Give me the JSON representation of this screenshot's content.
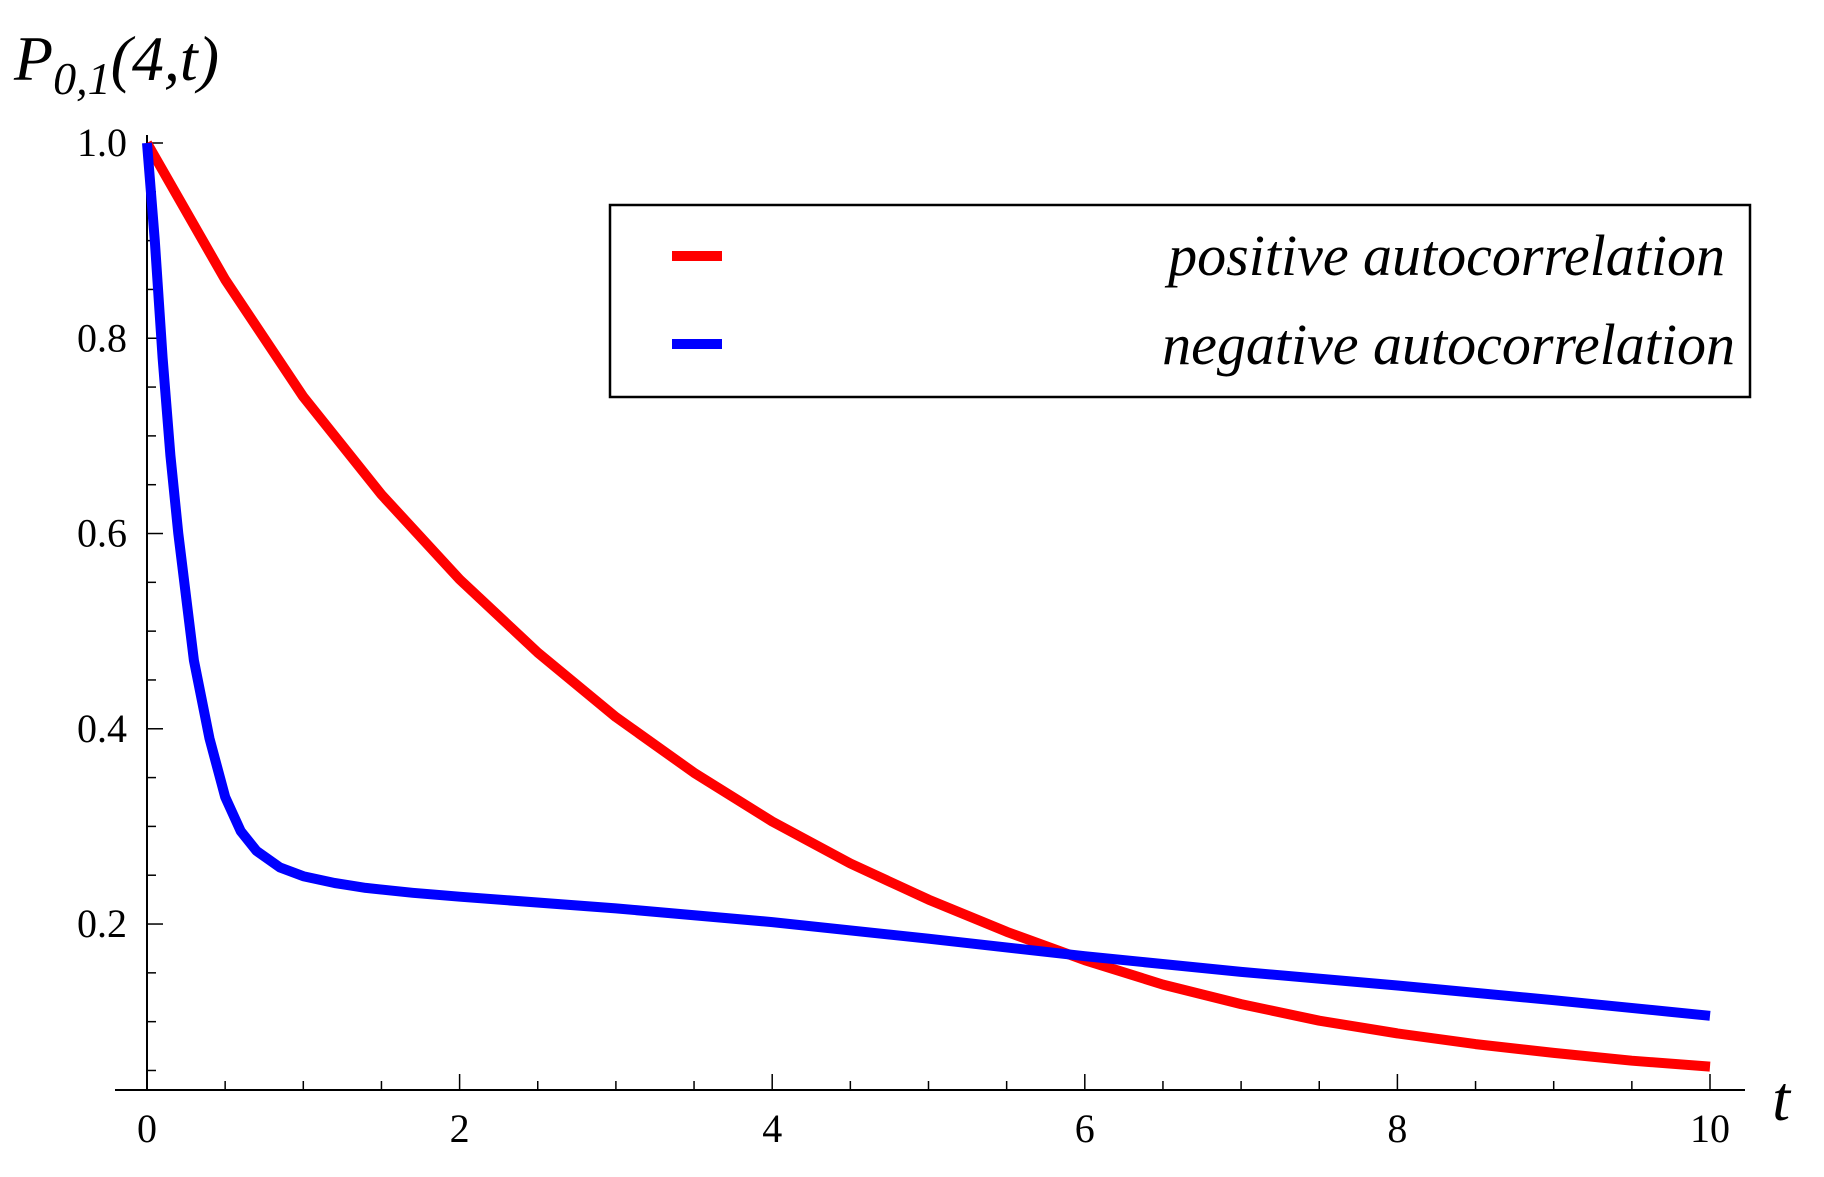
{
  "chart_data": {
    "type": "line",
    "title": "",
    "ylabel": {
      "base": "P",
      "subscript": "0,1",
      "args": "(4,t)"
    },
    "xlabel": "t",
    "xlim": [
      0,
      10
    ],
    "ylim": [
      0.03,
      1.0
    ],
    "x_ticks": [
      {
        "value": 0,
        "label": "0"
      },
      {
        "value": 2,
        "label": "2"
      },
      {
        "value": 4,
        "label": "4"
      },
      {
        "value": 6,
        "label": "6"
      },
      {
        "value": 8,
        "label": "8"
      },
      {
        "value": 10,
        "label": "10"
      }
    ],
    "y_ticks": [
      {
        "value": 0.2,
        "label": "0.2"
      },
      {
        "value": 0.4,
        "label": "0.4"
      },
      {
        "value": 0.6,
        "label": "0.6"
      },
      {
        "value": 0.8,
        "label": "0.8"
      },
      {
        "value": 1.0,
        "label": "1.0"
      }
    ],
    "x_minor_step": 0.5,
    "y_minor_step": 0.05,
    "grid": false,
    "legend_position": "top-right",
    "series": [
      {
        "name": "positive autocorrelation",
        "color": "#ff0000",
        "x": [
          0,
          0.5,
          1,
          1.5,
          2,
          2.5,
          3,
          3.5,
          4,
          4.5,
          5,
          5.5,
          6,
          6.5,
          7,
          7.5,
          8,
          8.5,
          9,
          9.5,
          10
        ],
        "y": [
          1.0,
          0.86,
          0.74,
          0.64,
          0.553,
          0.478,
          0.412,
          0.355,
          0.305,
          0.262,
          0.225,
          0.192,
          0.163,
          0.138,
          0.118,
          0.101,
          0.088,
          0.077,
          0.068,
          0.06,
          0.054
        ]
      },
      {
        "name": "negative autocorrelation",
        "color": "#0000ff",
        "x": [
          0,
          0.05,
          0.1,
          0.15,
          0.2,
          0.3,
          0.4,
          0.5,
          0.6,
          0.7,
          0.85,
          1.0,
          1.2,
          1.4,
          1.7,
          2,
          3,
          4,
          5,
          6,
          7,
          8,
          9,
          10
        ],
        "y": [
          1.0,
          0.9,
          0.78,
          0.68,
          0.6,
          0.47,
          0.39,
          0.33,
          0.295,
          0.275,
          0.258,
          0.249,
          0.242,
          0.237,
          0.232,
          0.228,
          0.216,
          0.202,
          0.185,
          0.167,
          0.151,
          0.137,
          0.122,
          0.106
        ]
      }
    ]
  }
}
